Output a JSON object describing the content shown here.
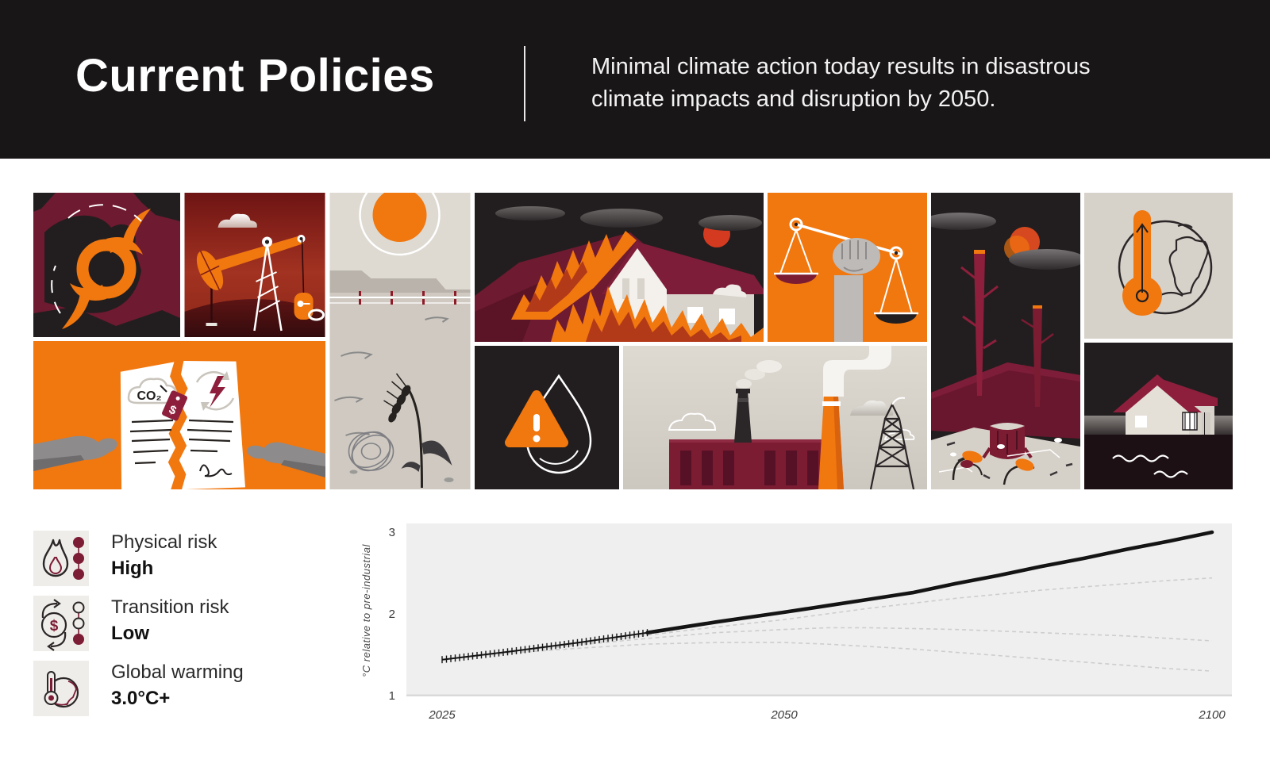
{
  "header": {
    "title": "Current Policies",
    "subtitle_line1": "Minimal climate action today results in disastrous",
    "subtitle_line2": "climate impacts and disruption by 2050."
  },
  "mosaic": {
    "tiles": [
      {
        "id": "hurricane",
        "description": "Orange hurricane symbol over dark storm-map shapes"
      },
      {
        "id": "oil-pumpjack",
        "description": "Orange oil pumpjack against dark red sky"
      },
      {
        "id": "drought-field",
        "description": "Hot sun over dry field with fence, wilted wheat and tumbleweed"
      },
      {
        "id": "burning-house",
        "description": "Wildfire flames engulfing a house on a hillside"
      },
      {
        "id": "justice-scales",
        "description": "Raised fist holding unbalanced scales on orange background"
      },
      {
        "id": "deforestation",
        "description": "Dead tree trunks and stump under dark sky with red sun"
      },
      {
        "id": "global-heating",
        "description": "Globe with orange thermometer rising"
      },
      {
        "id": "torn-climate-contract",
        "description": "Hands tearing a climate agreement with priced CO₂ cloud and clean-energy icon"
      },
      {
        "id": "water-scarcity",
        "description": "Water drop outline with orange warning triangle"
      },
      {
        "id": "fossil-industry",
        "description": "Factory with smoking chimneys and oil derrick"
      },
      {
        "id": "flooded-house",
        "description": "House submerged by dark flood water"
      }
    ]
  },
  "icon_text": {
    "co2": "CO₂",
    "dollar": "$"
  },
  "legend": {
    "items": [
      {
        "id": "physical-risk",
        "icon": "flame-icon",
        "label": "Physical risk",
        "value": "High",
        "dots_filled": 3,
        "dots_total": 3
      },
      {
        "id": "transition-risk",
        "icon": "transition-cycle-icon",
        "label": "Transition risk",
        "value": "Low",
        "dots_filled": 1,
        "dots_total": 3
      },
      {
        "id": "global-warming",
        "icon": "globe-thermometer-icon",
        "label": "Global warming",
        "value": "3.0°C+"
      }
    ]
  },
  "chart_data": {
    "type": "line",
    "title": "",
    "xlabel": "",
    "ylabel": "°C relative to pre-industrial",
    "x_ticks": [
      2025,
      2050,
      2100
    ],
    "y_ticks": [
      3,
      2,
      1
    ],
    "ylim": [
      1,
      3.1
    ],
    "xlim": [
      2025,
      2100
    ],
    "grid": false,
    "legend_position": "none",
    "x_axis_note": "non-linear year spacing: 2025-2050 occupies ~44% of plot width, 2050-2100 the rest",
    "observed_hatch_until": 2040,
    "x": [
      2025,
      2030,
      2035,
      2040,
      2045,
      2050,
      2055,
      2060,
      2065,
      2070,
      2075,
      2080,
      2085,
      2090,
      2095,
      2100
    ],
    "series": [
      {
        "name": "Current Policies",
        "style": "solid",
        "values": [
          1.44,
          1.54,
          1.65,
          1.77,
          1.9,
          2.02,
          2.1,
          2.18,
          2.26,
          2.37,
          2.47,
          2.58,
          2.68,
          2.79,
          2.89,
          3.0
        ]
      },
      {
        "name": "reference scenario (upper dashed)",
        "style": "dashed",
        "values": [
          1.44,
          1.53,
          1.63,
          1.74,
          1.84,
          1.93,
          2.0,
          2.07,
          2.13,
          2.19,
          2.24,
          2.29,
          2.33,
          2.37,
          2.41,
          2.44
        ]
      },
      {
        "name": "reference scenario (middle dashed)",
        "style": "dashed",
        "values": [
          1.44,
          1.53,
          1.62,
          1.7,
          1.77,
          1.81,
          1.83,
          1.83,
          1.82,
          1.81,
          1.79,
          1.77,
          1.75,
          1.73,
          1.7,
          1.67
        ]
      },
      {
        "name": "reference scenario (lower dashed)",
        "style": "dashed",
        "values": [
          1.44,
          1.52,
          1.58,
          1.63,
          1.65,
          1.65,
          1.63,
          1.6,
          1.57,
          1.53,
          1.49,
          1.45,
          1.41,
          1.37,
          1.33,
          1.3
        ]
      }
    ]
  },
  "colors": {
    "header_bg": "#191617",
    "orange": "#F1770F",
    "maroon": "#7C1C33",
    "crimson": "#8E1F3C",
    "dark": "#221E1F",
    "beige": "#D7D2CA",
    "wine": "#7C1C35",
    "chart_plot_bg": "#EFEFEF",
    "legend_tile_bg": "#EFEDE9",
    "main_line": "#141414",
    "dashed_line": "#CDCDCD"
  }
}
